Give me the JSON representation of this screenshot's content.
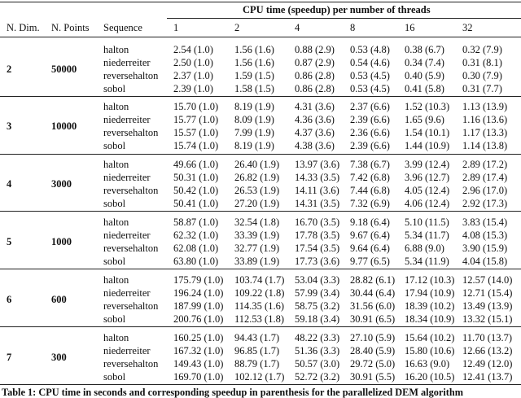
{
  "table": {
    "span_header": "CPU time (speedup) per number of threads",
    "columns": [
      "N. Dim.",
      "N. Points",
      "Sequence"
    ],
    "threads": [
      "1",
      "2",
      "4",
      "8",
      "16",
      "32"
    ],
    "groups": [
      {
        "dim": "2",
        "points": "50000",
        "rows": [
          {
            "sequence": "halton",
            "times": [
              "2.54 (1.0)",
              "1.56 (1.6)",
              "0.88 (2.9)",
              "0.53 (4.8)",
              "0.38 (6.7)",
              "0.32 (7.9)"
            ]
          },
          {
            "sequence": "niederreiter",
            "times": [
              "2.50 (1.0)",
              "1.56 (1.6)",
              "0.87 (2.9)",
              "0.54 (4.6)",
              "0.34 (7.4)",
              "0.31 (8.1)"
            ]
          },
          {
            "sequence": "reversehalton",
            "times": [
              "2.37 (1.0)",
              "1.59 (1.5)",
              "0.86 (2.8)",
              "0.53 (4.5)",
              "0.40 (5.9)",
              "0.30 (7.9)"
            ]
          },
          {
            "sequence": "sobol",
            "times": [
              "2.39 (1.0)",
              "1.58 (1.5)",
              "0.86 (2.8)",
              "0.53 (4.5)",
              "0.41 (5.8)",
              "0.31 (7.7)"
            ]
          }
        ]
      },
      {
        "dim": "3",
        "points": "10000",
        "rows": [
          {
            "sequence": "halton",
            "times": [
              "15.70 (1.0)",
              "8.19 (1.9)",
              "4.31 (3.6)",
              "2.37 (6.6)",
              "1.52 (10.3)",
              "1.13 (13.9)"
            ]
          },
          {
            "sequence": "niederreiter",
            "times": [
              "15.77 (1.0)",
              "8.09 (1.9)",
              "4.36 (3.6)",
              "2.39 (6.6)",
              "1.65 (9.6)",
              "1.16 (13.6)"
            ]
          },
          {
            "sequence": "reversehalton",
            "times": [
              "15.57 (1.0)",
              "7.99 (1.9)",
              "4.37 (3.6)",
              "2.36 (6.6)",
              "1.54 (10.1)",
              "1.17 (13.3)"
            ]
          },
          {
            "sequence": "sobol",
            "times": [
              "15.74 (1.0)",
              "8.19 (1.9)",
              "4.38 (3.6)",
              "2.39 (6.6)",
              "1.44 (10.9)",
              "1.14 (13.8)"
            ]
          }
        ]
      },
      {
        "dim": "4",
        "points": "3000",
        "rows": [
          {
            "sequence": "halton",
            "times": [
              "49.66 (1.0)",
              "26.40 (1.9)",
              "13.97 (3.6)",
              "7.38 (6.7)",
              "3.99 (12.4)",
              "2.89 (17.2)"
            ]
          },
          {
            "sequence": "niederreiter",
            "times": [
              "50.31 (1.0)",
              "26.82 (1.9)",
              "14.33 (3.5)",
              "7.42 (6.8)",
              "3.96 (12.7)",
              "2.89 (17.4)"
            ]
          },
          {
            "sequence": "reversehalton",
            "times": [
              "50.42 (1.0)",
              "26.53 (1.9)",
              "14.11 (3.6)",
              "7.44 (6.8)",
              "4.05 (12.4)",
              "2.96 (17.0)"
            ]
          },
          {
            "sequence": "sobol",
            "times": [
              "50.41 (1.0)",
              "27.20 (1.9)",
              "14.31 (3.5)",
              "7.32 (6.9)",
              "4.06 (12.4)",
              "2.92 (17.3)"
            ]
          }
        ]
      },
      {
        "dim": "5",
        "points": "1000",
        "rows": [
          {
            "sequence": "halton",
            "times": [
              "58.87 (1.0)",
              "32.54 (1.8)",
              "16.70 (3.5)",
              "9.18 (6.4)",
              "5.10 (11.5)",
              "3.83 (15.4)"
            ]
          },
          {
            "sequence": "niederreiter",
            "times": [
              "62.32 (1.0)",
              "33.39 (1.9)",
              "17.78 (3.5)",
              "9.67 (6.4)",
              "5.34 (11.7)",
              "4.08 (15.3)"
            ]
          },
          {
            "sequence": "reversehalton",
            "times": [
              "62.08 (1.0)",
              "32.77 (1.9)",
              "17.54 (3.5)",
              "9.64 (6.4)",
              "6.88 (9.0)",
              "3.90 (15.9)"
            ]
          },
          {
            "sequence": "sobol",
            "times": [
              "63.80 (1.0)",
              "33.89 (1.9)",
              "17.73 (3.6)",
              "9.77 (6.5)",
              "5.34 (11.9)",
              "4.04 (15.8)"
            ]
          }
        ]
      },
      {
        "dim": "6",
        "points": "600",
        "rows": [
          {
            "sequence": "halton",
            "times": [
              "175.79 (1.0)",
              "103.74 (1.7)",
              "53.04 (3.3)",
              "28.82 (6.1)",
              "17.12 (10.3)",
              "12.57 (14.0)"
            ]
          },
          {
            "sequence": "niederreiter",
            "times": [
              "196.24 (1.0)",
              "109.22 (1.8)",
              "57.99 (3.4)",
              "30.44 (6.4)",
              "17.94 (10.9)",
              "12.71 (15.4)"
            ]
          },
          {
            "sequence": "reversehalton",
            "times": [
              "187.99 (1.0)",
              "114.35 (1.6)",
              "58.75 (3.2)",
              "31.56 (6.0)",
              "18.39 (10.2)",
              "13.49 (13.9)"
            ]
          },
          {
            "sequence": "sobol",
            "times": [
              "200.76 (1.0)",
              "112.53 (1.8)",
              "59.18 (3.4)",
              "30.91 (6.5)",
              "18.34 (10.9)",
              "13.32 (15.1)"
            ]
          }
        ]
      },
      {
        "dim": "7",
        "points": "300",
        "rows": [
          {
            "sequence": "halton",
            "times": [
              "160.25 (1.0)",
              "94.43 (1.7)",
              "48.22 (3.3)",
              "27.10 (5.9)",
              "15.64 (10.2)",
              "11.70 (13.7)"
            ]
          },
          {
            "sequence": "niederreiter",
            "times": [
              "167.32 (1.0)",
              "96.85 (1.7)",
              "51.36 (3.3)",
              "28.40 (5.9)",
              "15.80 (10.6)",
              "12.66 (13.2)"
            ]
          },
          {
            "sequence": "reversehalton",
            "times": [
              "149.43 (1.0)",
              "88.79 (1.7)",
              "50.57 (3.0)",
              "29.72 (5.0)",
              "16.63 (9.0)",
              "12.49 (12.0)"
            ]
          },
          {
            "sequence": "sobol",
            "times": [
              "169.70 (1.0)",
              "102.12 (1.7)",
              "52.72 (3.2)",
              "30.91 (5.5)",
              "16.20 (10.5)",
              "12.41 (13.7)"
            ]
          }
        ]
      }
    ],
    "caption": "Table 1: CPU time in seconds and corresponding speedup in parenthesis for the parallelized DEM algorithm"
  }
}
